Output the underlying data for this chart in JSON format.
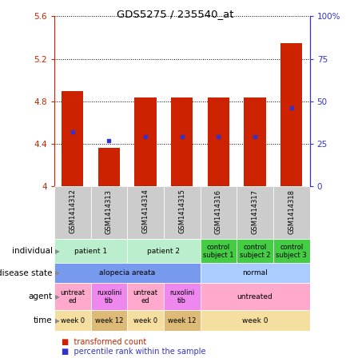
{
  "title": "GDS5275 / 235540_at",
  "samples": [
    "GSM1414312",
    "GSM1414313",
    "GSM1414314",
    "GSM1414315",
    "GSM1414316",
    "GSM1414317",
    "GSM1414318"
  ],
  "bar_values": [
    4.9,
    4.36,
    4.84,
    4.84,
    4.84,
    4.84,
    5.35
  ],
  "dot_values": [
    4.51,
    4.43,
    4.47,
    4.47,
    4.47,
    4.47,
    4.74
  ],
  "ylim_left": [
    4.0,
    5.6
  ],
  "ylim_right": [
    0,
    100
  ],
  "yticks_left": [
    4.0,
    4.4,
    4.8,
    5.2,
    5.6
  ],
  "yticks_right": [
    0,
    25,
    50,
    75,
    100
  ],
  "ytick_labels_left": [
    "4",
    "4.4",
    "4.8",
    "5.2",
    "5.6"
  ],
  "ytick_labels_right": [
    "0",
    "25",
    "50",
    "75",
    "100%"
  ],
  "bar_color": "#cc2200",
  "dot_color": "#3333cc",
  "plot_bg": "#ffffff",
  "individual_data": {
    "groups": [
      {
        "label": "patient 1",
        "span": [
          0,
          2
        ],
        "color": "#bbeecc"
      },
      {
        "label": "patient 2",
        "span": [
          2,
          4
        ],
        "color": "#bbeecc"
      },
      {
        "label": "control\nsubject 1",
        "span": [
          4,
          5
        ],
        "color": "#44cc44"
      },
      {
        "label": "control\nsubject 2",
        "span": [
          5,
          6
        ],
        "color": "#44cc44"
      },
      {
        "label": "control\nsubject 3",
        "span": [
          6,
          7
        ],
        "color": "#44cc44"
      }
    ]
  },
  "disease_state_data": {
    "groups": [
      {
        "label": "alopecia areata",
        "span": [
          0,
          4
        ],
        "color": "#7799ee"
      },
      {
        "label": "normal",
        "span": [
          4,
          7
        ],
        "color": "#aaccff"
      }
    ]
  },
  "agent_data": {
    "groups": [
      {
        "label": "untreat\ned",
        "span": [
          0,
          1
        ],
        "color": "#ffaacc"
      },
      {
        "label": "ruxolini\ntib",
        "span": [
          1,
          2
        ],
        "color": "#ee88ee"
      },
      {
        "label": "untreat\ned",
        "span": [
          2,
          3
        ],
        "color": "#ffaacc"
      },
      {
        "label": "ruxolini\ntib",
        "span": [
          3,
          4
        ],
        "color": "#ee88ee"
      },
      {
        "label": "untreated",
        "span": [
          4,
          7
        ],
        "color": "#ffaacc"
      }
    ]
  },
  "time_data": {
    "groups": [
      {
        "label": "week 0",
        "span": [
          0,
          1
        ],
        "color": "#f5dfa0"
      },
      {
        "label": "week 12",
        "span": [
          1,
          2
        ],
        "color": "#ddbb77"
      },
      {
        "label": "week 0",
        "span": [
          2,
          3
        ],
        "color": "#f5dfa0"
      },
      {
        "label": "week 12",
        "span": [
          3,
          4
        ],
        "color": "#ddbb77"
      },
      {
        "label": "week 0",
        "span": [
          4,
          7
        ],
        "color": "#f5dfa0"
      }
    ]
  },
  "legend_items": [
    {
      "label": "transformed count",
      "color": "#cc2200"
    },
    {
      "label": "percentile rank within the sample",
      "color": "#3333cc"
    }
  ]
}
